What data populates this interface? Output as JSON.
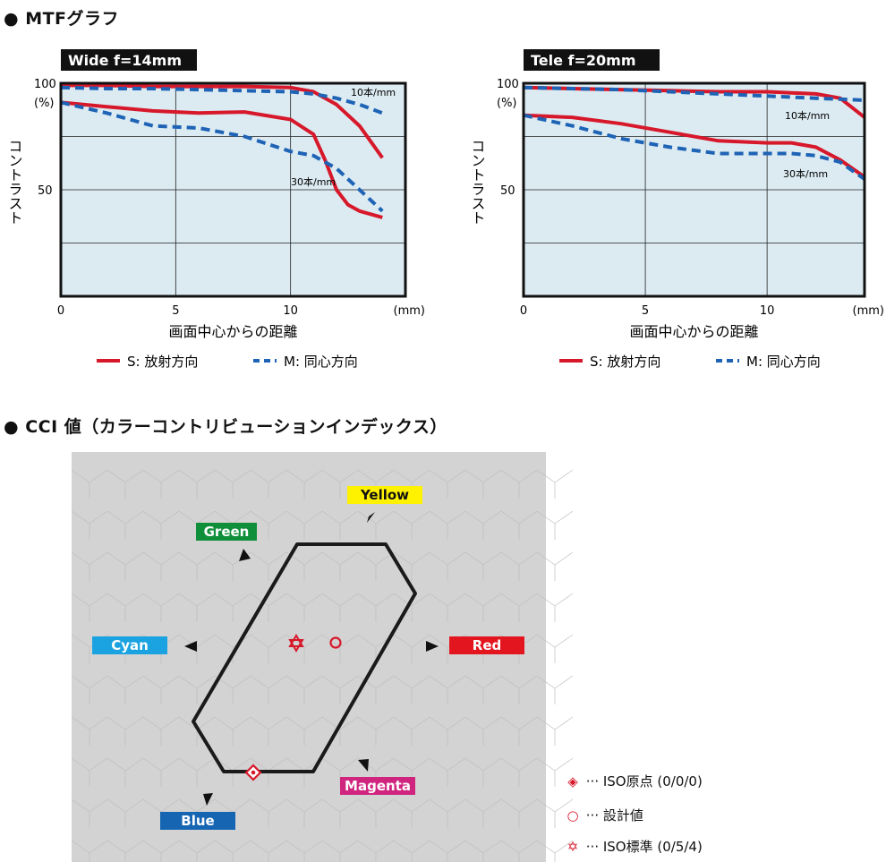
{
  "mtf_title": "● MTFグラフ",
  "cci_title": "● CCI 値（カラーコントリビューションインデックス）",
  "chart_data": [
    {
      "type": "line",
      "title": "Wide  f=14mm",
      "xlabel": "画面中心からの距離",
      "ylabel": "コントラスト",
      "x_unit": "(mm)",
      "y_unit_labels": [
        "100",
        "(%)"
      ],
      "xlim": [
        0,
        15
      ],
      "ylim": [
        0,
        100
      ],
      "x_ticks": [
        "0",
        "5",
        "10"
      ],
      "y_ticks": [
        "50"
      ],
      "grid": true,
      "annotations": [
        "10本/mm",
        "30本/mm"
      ],
      "series": [
        {
          "name": "S: 放射方向",
          "color": "#d7182a",
          "style": "solid",
          "x": [
            0,
            2,
            4,
            6,
            8,
            10,
            11,
            12,
            13,
            14
          ],
          "y": [
            99,
            99,
            98.5,
            98.5,
            98.5,
            98,
            96,
            90,
            80,
            65
          ]
        },
        {
          "name": "M: 同心方向",
          "color": "#1e63b5",
          "style": "dashed",
          "x": [
            0,
            2,
            4,
            6,
            8,
            10,
            11,
            12,
            13,
            14
          ],
          "y": [
            98,
            97.5,
            97.5,
            97,
            96.5,
            96,
            95,
            93,
            90,
            86
          ]
        },
        {
          "name": "S: 放射方向",
          "color": "#d7182a",
          "style": "solid",
          "x": [
            0,
            2,
            4,
            6,
            8,
            10,
            11,
            11.5,
            12,
            12.5,
            13,
            14
          ],
          "y": [
            91,
            89,
            87,
            86,
            86.5,
            83,
            76,
            64,
            50,
            43,
            40,
            37
          ]
        },
        {
          "name": "M: 同心方向",
          "color": "#1e63b5",
          "style": "dashed",
          "x": [
            0,
            2,
            4,
            6,
            8,
            10,
            11,
            12,
            13,
            14
          ],
          "y": [
            91,
            86,
            80,
            79,
            75,
            68,
            66,
            60,
            50,
            40
          ]
        }
      ]
    },
    {
      "type": "line",
      "title": "Tele  f=20mm",
      "xlabel": "画面中心からの距離",
      "ylabel": "コントラスト",
      "x_unit": "(mm)",
      "y_unit_labels": [
        "100",
        "(%)"
      ],
      "xlim": [
        0,
        14
      ],
      "ylim": [
        0,
        100
      ],
      "x_ticks": [
        "0",
        "5",
        "10"
      ],
      "y_ticks": [
        "50"
      ],
      "grid": true,
      "annotations": [
        "10本/mm",
        "30本/mm"
      ],
      "series": [
        {
          "name": "S: 放射方向",
          "color": "#d7182a",
          "style": "solid",
          "x": [
            0,
            2,
            4,
            6,
            8,
            10,
            11,
            12,
            13,
            14
          ],
          "y": [
            98,
            97.5,
            97,
            96.5,
            96,
            96,
            95.5,
            95,
            93,
            84
          ]
        },
        {
          "name": "M: 同心方向",
          "color": "#1e63b5",
          "style": "dashed",
          "x": [
            0,
            2,
            4,
            6,
            8,
            10,
            11,
            12,
            13,
            14
          ],
          "y": [
            98,
            97.5,
            97,
            96,
            95,
            94,
            93.5,
            93,
            92.5,
            92
          ]
        },
        {
          "name": "S: 放射方向",
          "color": "#d7182a",
          "style": "solid",
          "x": [
            0,
            2,
            4,
            6,
            8,
            10,
            11,
            12,
            13,
            14
          ],
          "y": [
            85,
            84,
            81,
            77,
            73,
            72,
            72,
            70,
            64,
            56
          ]
        },
        {
          "name": "M: 同心方向",
          "color": "#1e63b5",
          "style": "dashed",
          "x": [
            0,
            2,
            4,
            6,
            8,
            10,
            11,
            12,
            13,
            14
          ],
          "y": [
            85,
            80,
            74,
            70,
            67,
            67,
            67,
            66,
            63,
            55
          ]
        }
      ]
    }
  ],
  "mtf_legend": [
    {
      "label": "S: 放射方向",
      "color": "#d7182a",
      "style": "solid"
    },
    {
      "label": "M: 同心方向",
      "color": "#1e63b5",
      "style": "dashed"
    }
  ],
  "cci": {
    "labels": [
      {
        "text": "Yellow",
        "color": "#fff200",
        "text_color": "#111111"
      },
      {
        "text": "Green",
        "color": "#0f8f3a",
        "text_color": "#ffffff"
      },
      {
        "text": "Cyan",
        "color": "#1aa3e0",
        "text_color": "#ffffff"
      },
      {
        "text": "Red",
        "color": "#e3161f",
        "text_color": "#ffffff"
      },
      {
        "text": "Magenta",
        "color": "#d0257f",
        "text_color": "#ffffff"
      },
      {
        "text": "Blue",
        "color": "#1565b3",
        "text_color": "#ffffff"
      }
    ],
    "legend": [
      {
        "icon": "iso-origin-diamond-icon",
        "glyph": "◈",
        "text": "··· ISO原点 (0/0/0)"
      },
      {
        "icon": "design-value-circle-icon",
        "glyph": "○",
        "text": "··· 設計値"
      },
      {
        "icon": "iso-standard-star-icon",
        "glyph": "✡",
        "text": "··· ISO標準 (0/5/4)"
      }
    ],
    "background_color": "#d3d3d3",
    "marker_color": "#d7182a"
  }
}
